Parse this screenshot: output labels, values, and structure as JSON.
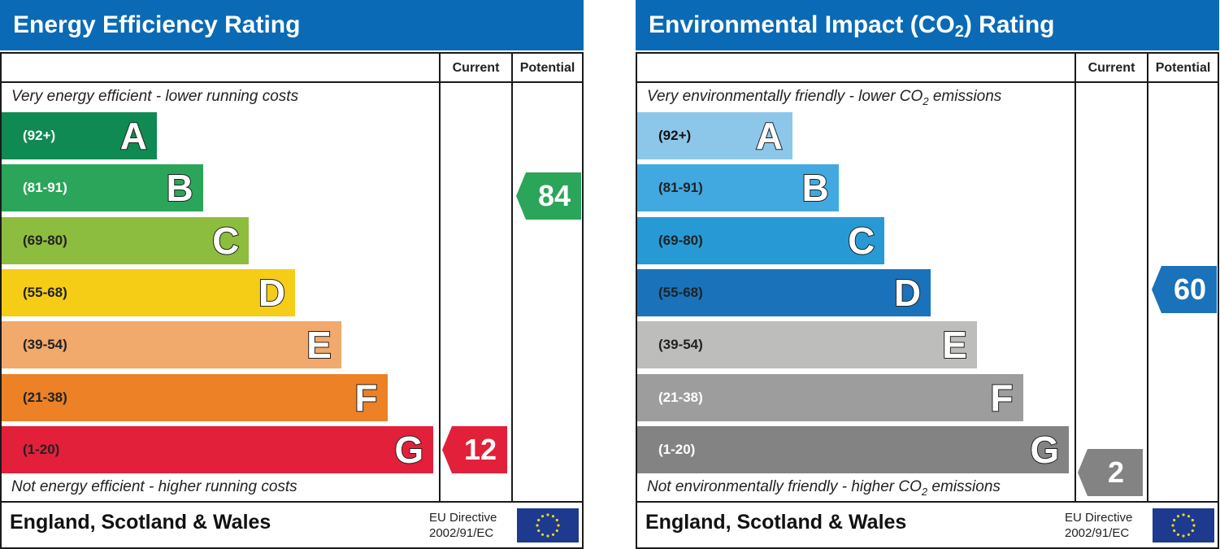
{
  "chart_data": [
    {
      "type": "bar",
      "title": "Energy Efficiency Rating",
      "column_headers": [
        "Current",
        "Potential"
      ],
      "top_caption": "Very energy efficient - lower running costs",
      "bottom_caption": "Not energy efficient - higher running costs",
      "bands": [
        {
          "range": "(92+)",
          "letter": "A",
          "color": "#0f8a52",
          "text_color": "#ffffff"
        },
        {
          "range": "(81-91)",
          "letter": "B",
          "color": "#2aa55a",
          "text_color": "#ffffff"
        },
        {
          "range": "(69-80)",
          "letter": "C",
          "color": "#8dbd3e",
          "text_color": "#222222"
        },
        {
          "range": "(55-68)",
          "letter": "D",
          "color": "#f5cd16",
          "text_color": "#222222"
        },
        {
          "range": "(39-54)",
          "letter": "E",
          "color": "#f2a96c",
          "text_color": "#222222"
        },
        {
          "range": "(21-38)",
          "letter": "F",
          "color": "#ec8126",
          "text_color": "#222222"
        },
        {
          "range": "(1-20)",
          "letter": "G",
          "color": "#e3203a",
          "text_color": "#222222"
        }
      ],
      "current": {
        "value": 12,
        "band": "G",
        "color": "#e3203a"
      },
      "potential": {
        "value": 84,
        "band": "B",
        "color": "#2aa55a"
      },
      "footer": "England, Scotland & Wales",
      "directive": [
        "EU Directive",
        "2002/91/EC"
      ]
    },
    {
      "type": "bar",
      "title": "Environmental Impact (CO",
      "title_sub": "2",
      "title_suffix": ") Rating",
      "column_headers": [
        "Current",
        "Potential"
      ],
      "top_caption": "Very environmentally friendly - lower CO",
      "top_caption_sub": "2",
      "top_caption_suffix": " emissions",
      "bottom_caption": "Not environmentally friendly - higher CO",
      "bottom_caption_sub": "2",
      "bottom_caption_suffix": " emissions",
      "bands": [
        {
          "range": "(92+)",
          "letter": "A",
          "color": "#8cc7ea",
          "text_color": "#111111"
        },
        {
          "range": "(81-91)",
          "letter": "B",
          "color": "#42a9e0",
          "text_color": "#222222"
        },
        {
          "range": "(69-80)",
          "letter": "C",
          "color": "#279ad6",
          "text_color": "#222222"
        },
        {
          "range": "(55-68)",
          "letter": "D",
          "color": "#1a72bb",
          "text_color": "#222222"
        },
        {
          "range": "(39-54)",
          "letter": "E",
          "color": "#bdbdbb",
          "text_color": "#222222"
        },
        {
          "range": "(21-38)",
          "letter": "F",
          "color": "#9d9d9d",
          "text_color": "#ffffff"
        },
        {
          "range": "(1-20)",
          "letter": "G",
          "color": "#838383",
          "text_color": "#ffffff"
        }
      ],
      "current": {
        "value": 2,
        "band": "G",
        "color": "#838383"
      },
      "potential": {
        "value": 60,
        "band": "D",
        "color": "#1a72bb"
      },
      "footer": "England, Scotland & Wales",
      "directive": [
        "EU Directive",
        "2002/91/EC"
      ]
    }
  ]
}
